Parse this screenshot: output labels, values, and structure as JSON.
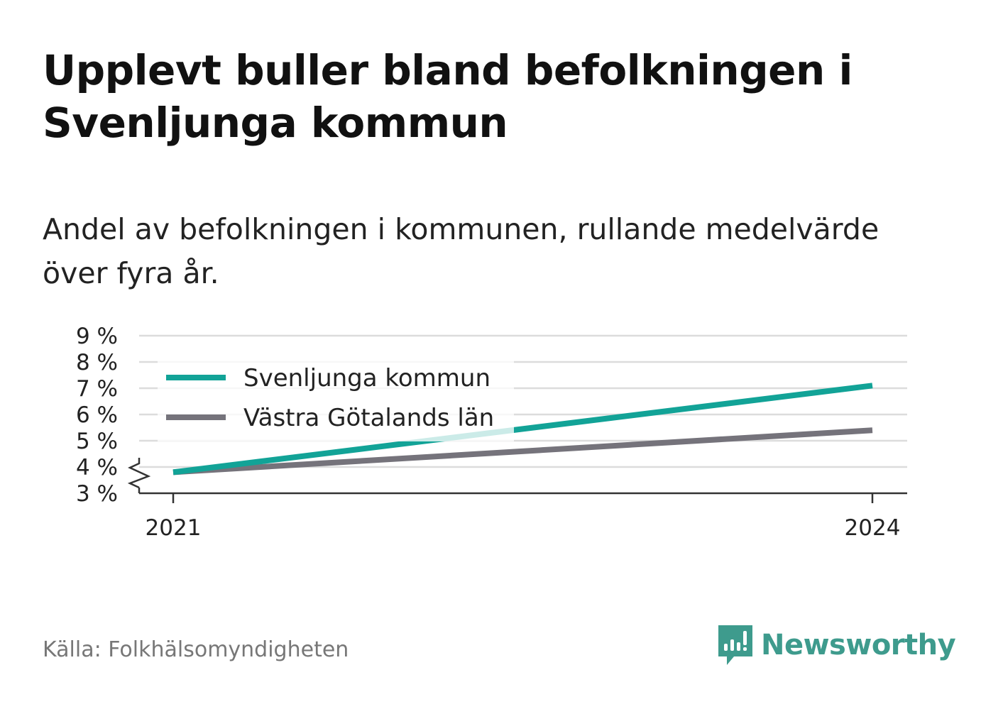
{
  "title": "Upplevt buller bland befolkningen i Svenljunga kommun",
  "subtitle": "Andel av befolkningen i kommunen, rullande medelvärde över fyra år.",
  "source": "Källa: Folkhälsomyndigheten",
  "brand": {
    "name": "Newsworthy",
    "icon": "newsworthy-logo-icon",
    "color": "#3e9b8d"
  },
  "chart_data": {
    "type": "line",
    "x": [
      "2021",
      "2024"
    ],
    "ylim": [
      3,
      9
    ],
    "y_ticks": [
      {
        "value": 3,
        "label": "3 %"
      },
      {
        "value": 4,
        "label": "4 %"
      },
      {
        "value": 5,
        "label": "5 %"
      },
      {
        "value": 6,
        "label": "6 %"
      },
      {
        "value": 7,
        "label": "7 %"
      },
      {
        "value": 8,
        "label": "8 %"
      },
      {
        "value": 9,
        "label": "9 %"
      }
    ],
    "y_axis_break": true,
    "grid": true,
    "legend_position": "top-left",
    "series": [
      {
        "name": "Svenljunga kommun",
        "color": "#12a397",
        "values": [
          3.8,
          7.1
        ]
      },
      {
        "name": "Västra Götalands län",
        "color": "#75737b",
        "values": [
          3.8,
          5.4
        ]
      }
    ]
  }
}
